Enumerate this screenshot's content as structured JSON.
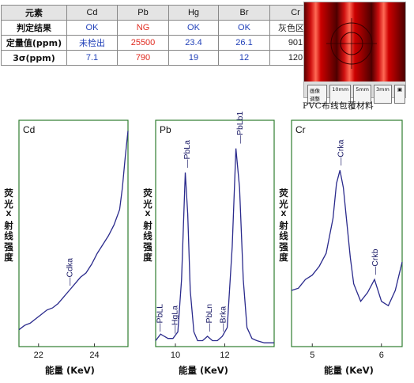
{
  "table": {
    "header": [
      "元素",
      "Cd",
      "Pb",
      "Hg",
      "Br",
      "Cr"
    ],
    "rows": [
      {
        "label": "判定结果",
        "cells": [
          {
            "v": "OK",
            "c": "blue"
          },
          {
            "v": "NG",
            "c": "red"
          },
          {
            "v": "OK",
            "c": "blue"
          },
          {
            "v": "OK",
            "c": "blue"
          },
          {
            "v": "灰色区域",
            "c": "blk"
          }
        ]
      },
      {
        "label": "定量值(ppm)",
        "cells": [
          {
            "v": "未检出",
            "c": "blue"
          },
          {
            "v": "25500",
            "c": "red"
          },
          {
            "v": "23.4",
            "c": "blue"
          },
          {
            "v": "26.1",
            "c": "blue"
          },
          {
            "v": "901",
            "c": "blk"
          }
        ]
      },
      {
        "label": "3σ(ppm)",
        "cells": [
          {
            "v": "7.1",
            "c": "blue"
          },
          {
            "v": "790",
            "c": "red"
          },
          {
            "v": "19",
            "c": "blue"
          },
          {
            "v": "12",
            "c": "blue"
          },
          {
            "v": "120",
            "c": "blk"
          }
        ]
      }
    ]
  },
  "photo": {
    "caption": "PVC布线包覆材料",
    "buttons": [
      "画像调整",
      "10mm",
      "5mm",
      "3mm"
    ]
  },
  "ylabel": "荧光X射线强度",
  "xlabel": "能量 (KeV)",
  "colors": {
    "line": "#2a2a8c",
    "frame": "#2e7d2e",
    "label": "#1a1a66",
    "blue": "#1f3fb8",
    "red": "#e02a1f"
  },
  "chart_data": [
    {
      "type": "line",
      "title": "Cd",
      "xlim": [
        21.3,
        25.2
      ],
      "ylim": [
        0,
        1
      ],
      "xticks": [
        22,
        24
      ],
      "x": [
        21.3,
        21.5,
        21.7,
        21.9,
        22.1,
        22.3,
        22.5,
        22.7,
        22.9,
        23.1,
        23.3,
        23.5,
        23.7,
        23.9,
        24.1,
        24.3,
        24.5,
        24.7,
        24.9,
        25.0,
        25.1,
        25.2
      ],
      "y": [
        0.07,
        0.09,
        0.1,
        0.12,
        0.14,
        0.16,
        0.17,
        0.19,
        0.22,
        0.25,
        0.28,
        0.31,
        0.33,
        0.37,
        0.42,
        0.46,
        0.5,
        0.55,
        0.62,
        0.72,
        0.86,
        0.98
      ],
      "peaks": [
        {
          "label": "Cdka",
          "x": 23.1,
          "y": 0.25
        }
      ]
    },
    {
      "type": "line",
      "title": "Pb",
      "xlim": [
        9.2,
        14.0
      ],
      "ylim": [
        0,
        1
      ],
      "xticks": [
        10,
        12
      ],
      "x": [
        9.2,
        9.4,
        9.55,
        9.7,
        9.9,
        10.1,
        10.25,
        10.4,
        10.5,
        10.6,
        10.75,
        10.9,
        11.1,
        11.3,
        11.5,
        11.7,
        11.9,
        12.1,
        12.3,
        12.45,
        12.6,
        12.75,
        12.9,
        13.1,
        13.3,
        13.6,
        14.0
      ],
      "y": [
        0.02,
        0.05,
        0.04,
        0.03,
        0.03,
        0.06,
        0.3,
        0.79,
        0.6,
        0.25,
        0.06,
        0.02,
        0.02,
        0.04,
        0.02,
        0.02,
        0.04,
        0.08,
        0.45,
        0.9,
        0.72,
        0.3,
        0.08,
        0.03,
        0.02,
        0.01,
        0.01
      ],
      "peaks": [
        {
          "label": "PbLa",
          "x": 10.45,
          "y": 0.79
        },
        {
          "label": "PbLb1",
          "x": 12.6,
          "y": 0.9
        },
        {
          "label": "PbLL",
          "x": 9.35,
          "y": 0.04
        },
        {
          "label": "HgLa",
          "x": 9.95,
          "y": 0.03
        },
        {
          "label": "PbLn",
          "x": 11.35,
          "y": 0.04
        },
        {
          "label": "Brka",
          "x": 11.9,
          "y": 0.04
        }
      ]
    },
    {
      "type": "line",
      "title": "Cr",
      "xlim": [
        4.7,
        6.3
      ],
      "ylim": [
        0,
        1
      ],
      "xticks": [
        5,
        6
      ],
      "x": [
        4.7,
        4.8,
        4.9,
        5.0,
        5.1,
        5.2,
        5.3,
        5.35,
        5.4,
        5.45,
        5.5,
        5.55,
        5.6,
        5.7,
        5.8,
        5.9,
        6.0,
        6.1,
        6.2,
        6.3
      ],
      "y": [
        0.25,
        0.26,
        0.3,
        0.32,
        0.36,
        0.42,
        0.58,
        0.74,
        0.8,
        0.72,
        0.56,
        0.4,
        0.28,
        0.2,
        0.24,
        0.3,
        0.2,
        0.18,
        0.25,
        0.38
      ],
      "peaks": [
        {
          "label": "Crka",
          "x": 5.4,
          "y": 0.8
        },
        {
          "label": "Crkb",
          "x": 5.9,
          "y": 0.3
        }
      ]
    }
  ]
}
